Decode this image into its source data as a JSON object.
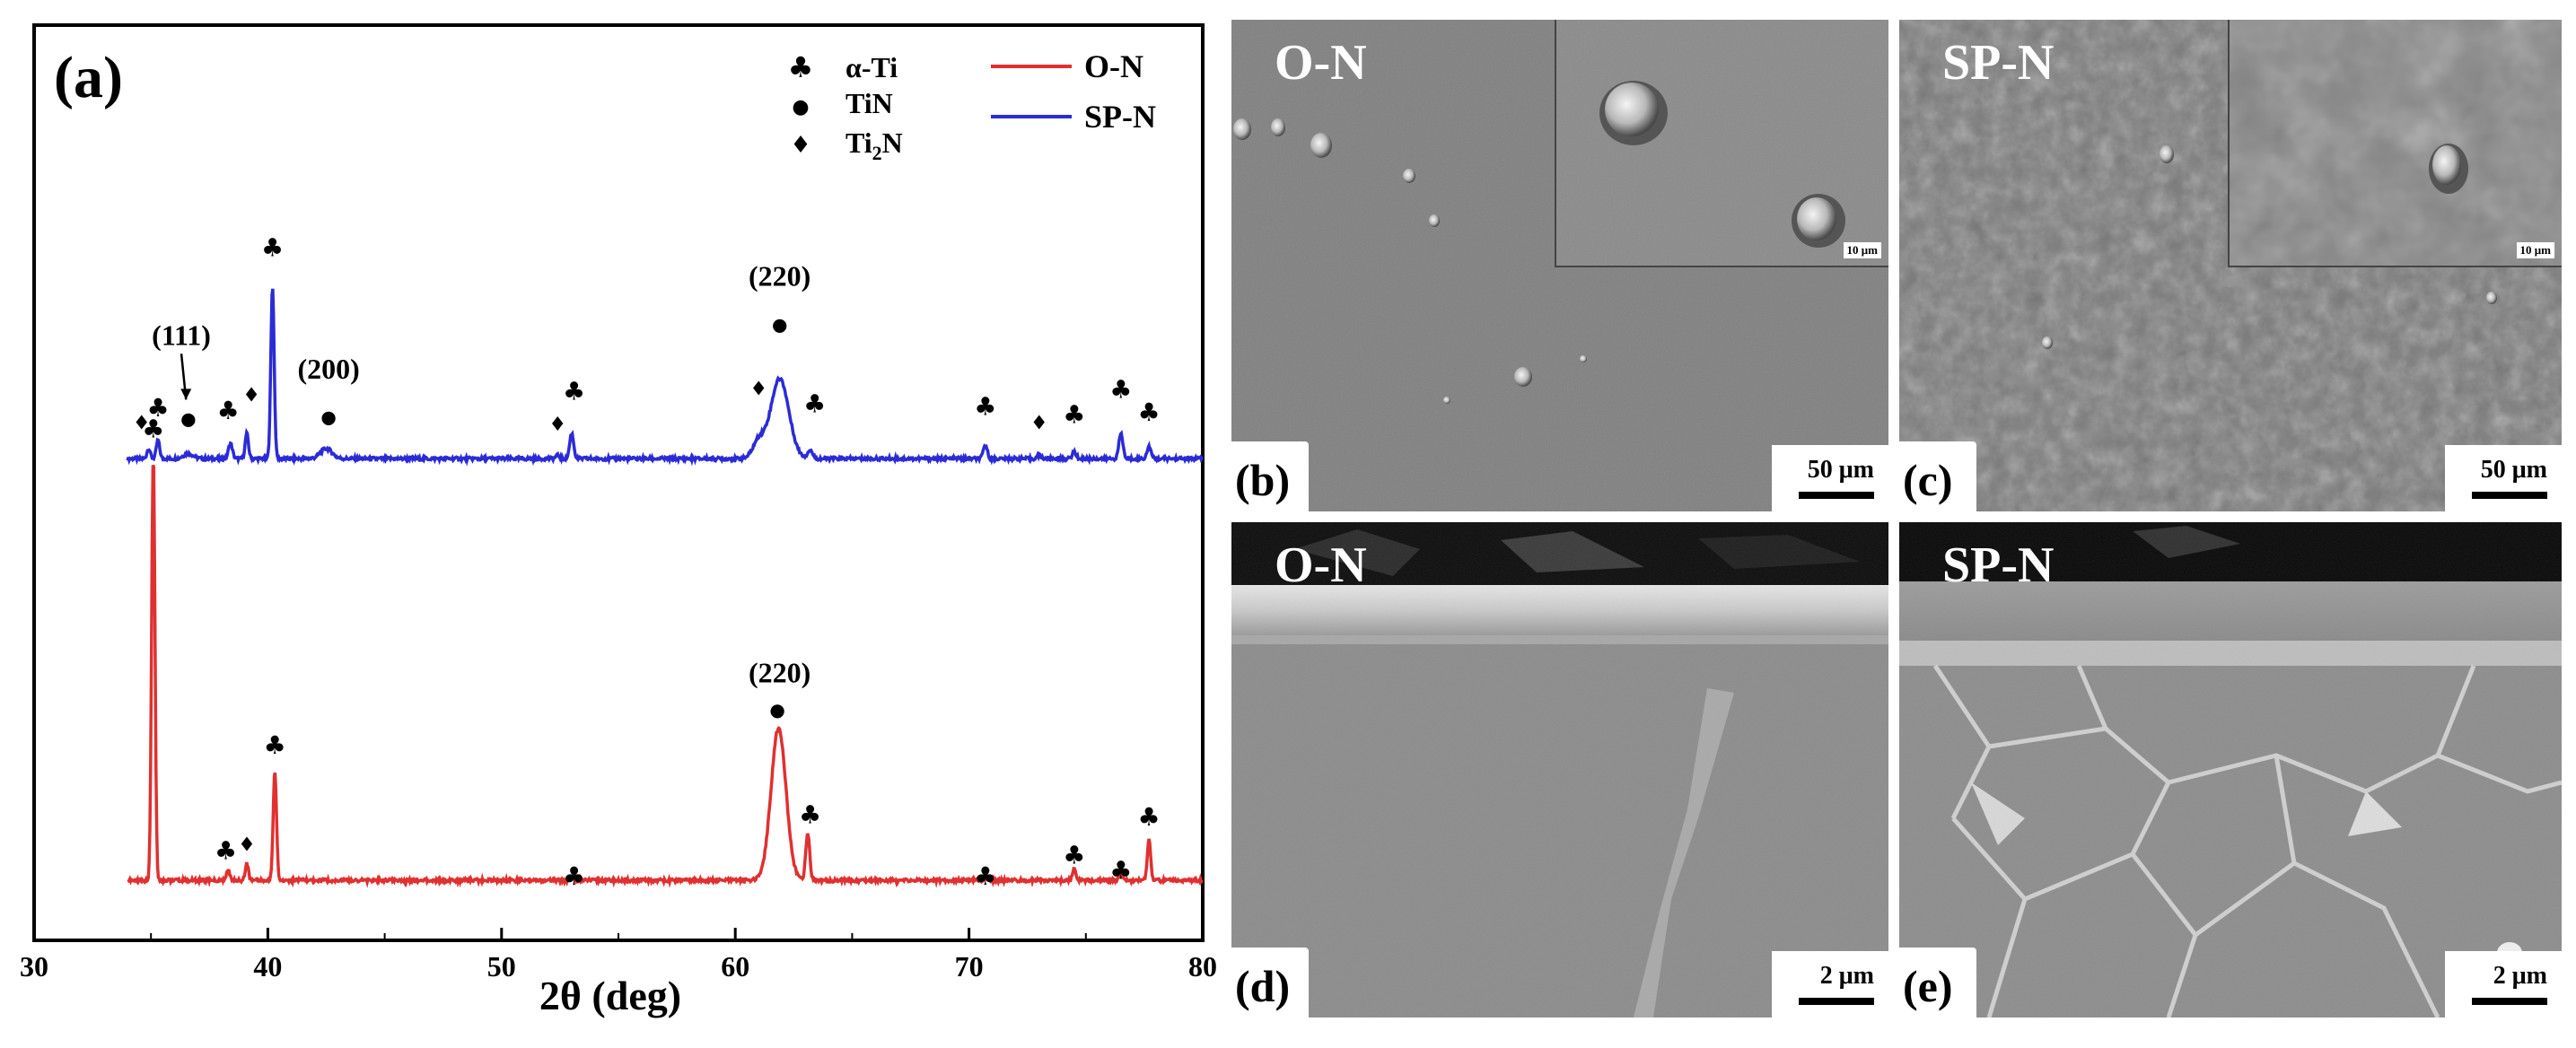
{
  "chart_data": {
    "type": "line",
    "panel_label": "(a)",
    "xlabel": "2θ (deg)",
    "xlim": [
      30,
      80
    ],
    "xticks": [
      30,
      40,
      50,
      60,
      70,
      80
    ],
    "ylabel": "",
    "y_ticks_shown": false,
    "legend": {
      "placement": "top-right",
      "series_labels": [
        "O-N",
        "SP-N"
      ],
      "phase_symbols": [
        {
          "symbol": "♣",
          "label": "α-Ti"
        },
        {
          "symbol": "●",
          "label": "TiN"
        },
        {
          "symbol": "♦",
          "label": "Ti2N"
        }
      ]
    },
    "series": [
      {
        "name": "SP-N",
        "color": "#2b2bd6",
        "baseline": 0.52,
        "peaks": [
          {
            "x": 34.9,
            "h": 0.012,
            "w": 0.1
          },
          {
            "x": 35.3,
            "h": 0.022,
            "w": 0.1
          },
          {
            "x": 36.6,
            "h": 0.006,
            "w": 0.3
          },
          {
            "x": 38.4,
            "h": 0.018,
            "w": 0.12
          },
          {
            "x": 39.1,
            "h": 0.03,
            "w": 0.1
          },
          {
            "x": 40.2,
            "h": 0.205,
            "w": 0.1
          },
          {
            "x": 42.5,
            "h": 0.012,
            "w": 0.35
          },
          {
            "x": 52.4,
            "h": 0.004,
            "w": 0.12
          },
          {
            "x": 53.0,
            "h": 0.03,
            "w": 0.12
          },
          {
            "x": 61.0,
            "h": 0.02,
            "w": 0.35
          },
          {
            "x": 61.9,
            "h": 0.095,
            "w": 0.55
          },
          {
            "x": 63.2,
            "h": 0.01,
            "w": 0.15
          },
          {
            "x": 70.7,
            "h": 0.016,
            "w": 0.12
          },
          {
            "x": 73.0,
            "h": 0.004,
            "w": 0.12
          },
          {
            "x": 74.5,
            "h": 0.008,
            "w": 0.12
          },
          {
            "x": 76.5,
            "h": 0.03,
            "w": 0.12
          },
          {
            "x": 77.7,
            "h": 0.014,
            "w": 0.12
          }
        ],
        "markers": [
          {
            "x": 34.6,
            "y": 0.555,
            "sym": "♦"
          },
          {
            "x": 35.3,
            "y": 0.57,
            "sym": "♣"
          },
          {
            "x": 36.6,
            "y": 0.56,
            "sym": "●"
          },
          {
            "x": 38.3,
            "y": 0.567,
            "sym": "♣"
          },
          {
            "x": 39.3,
            "y": 0.588,
            "sym": "♦"
          },
          {
            "x": 40.2,
            "y": 0.76,
            "sym": "♣"
          },
          {
            "x": 42.6,
            "y": 0.562,
            "sym": "●"
          },
          {
            "x": 52.4,
            "y": 0.553,
            "sym": "♦"
          },
          {
            "x": 53.1,
            "y": 0.59,
            "sym": "♣"
          },
          {
            "x": 61.0,
            "y": 0.595,
            "sym": "♦"
          },
          {
            "x": 61.9,
            "y": 0.672,
            "sym": "●"
          },
          {
            "x": 63.4,
            "y": 0.575,
            "sym": "♣"
          },
          {
            "x": 70.7,
            "y": 0.572,
            "sym": "♣"
          },
          {
            "x": 73.0,
            "y": 0.555,
            "sym": "♦"
          },
          {
            "x": 74.5,
            "y": 0.562,
            "sym": "♣"
          },
          {
            "x": 76.5,
            "y": 0.592,
            "sym": "♣"
          },
          {
            "x": 77.7,
            "y": 0.565,
            "sym": "♣"
          }
        ]
      },
      {
        "name": "O-N",
        "color": "#e03030",
        "baseline": 0.02,
        "peaks": [
          {
            "x": 35.1,
            "h": 0.505,
            "w": 0.1
          },
          {
            "x": 38.3,
            "h": 0.012,
            "w": 0.1
          },
          {
            "x": 39.1,
            "h": 0.02,
            "w": 0.1
          },
          {
            "x": 40.3,
            "h": 0.13,
            "w": 0.1
          },
          {
            "x": 53.0,
            "h": 0.003,
            "w": 0.1
          },
          {
            "x": 61.85,
            "h": 0.18,
            "w": 0.45
          },
          {
            "x": 63.1,
            "h": 0.055,
            "w": 0.12
          },
          {
            "x": 70.7,
            "h": 0.003,
            "w": 0.1
          },
          {
            "x": 74.5,
            "h": 0.015,
            "w": 0.1
          },
          {
            "x": 76.5,
            "h": 0.008,
            "w": 0.1
          },
          {
            "x": 77.7,
            "h": 0.05,
            "w": 0.1
          }
        ],
        "markers": [
          {
            "x": 35.1,
            "y": 0.545,
            "sym": "♣"
          },
          {
            "x": 38.2,
            "y": 0.045,
            "sym": "♣"
          },
          {
            "x": 39.1,
            "y": 0.055,
            "sym": "♦"
          },
          {
            "x": 40.3,
            "y": 0.17,
            "sym": "♣"
          },
          {
            "x": 53.1,
            "y": 0.015,
            "sym": "♣"
          },
          {
            "x": 61.8,
            "y": 0.215,
            "sym": "●"
          },
          {
            "x": 63.2,
            "y": 0.088,
            "sym": "♣"
          },
          {
            "x": 70.7,
            "y": 0.015,
            "sym": "♣"
          },
          {
            "x": 74.5,
            "y": 0.04,
            "sym": "♣"
          },
          {
            "x": 76.5,
            "y": 0.022,
            "sym": "♣"
          },
          {
            "x": 77.7,
            "y": 0.085,
            "sym": "♣"
          }
        ]
      }
    ],
    "annotations": [
      {
        "text": "(111)",
        "x": 36.3,
        "y": 0.655,
        "arrow_to": [
          36.5,
          0.59
        ]
      },
      {
        "text": "(200)",
        "x": 42.6,
        "y": 0.615
      },
      {
        "text": "(220)",
        "x": 61.9,
        "y": 0.725
      },
      {
        "text": "(220)",
        "x": 61.9,
        "y": 0.255
      }
    ],
    "ylim": [
      0,
      1
    ]
  },
  "sem_panels": [
    {
      "id": "b",
      "label": "(b)",
      "title": "O-N",
      "scale": "50 μm",
      "inset_scale": "10 μm"
    },
    {
      "id": "c",
      "label": "(c)",
      "title": "SP-N",
      "scale": "50 μm",
      "inset_scale": "10 μm"
    },
    {
      "id": "d",
      "label": "(d)",
      "title": "O-N",
      "scale": "2 μm"
    },
    {
      "id": "e",
      "label": "(e)",
      "title": "SP-N",
      "scale": "2 μm"
    }
  ]
}
